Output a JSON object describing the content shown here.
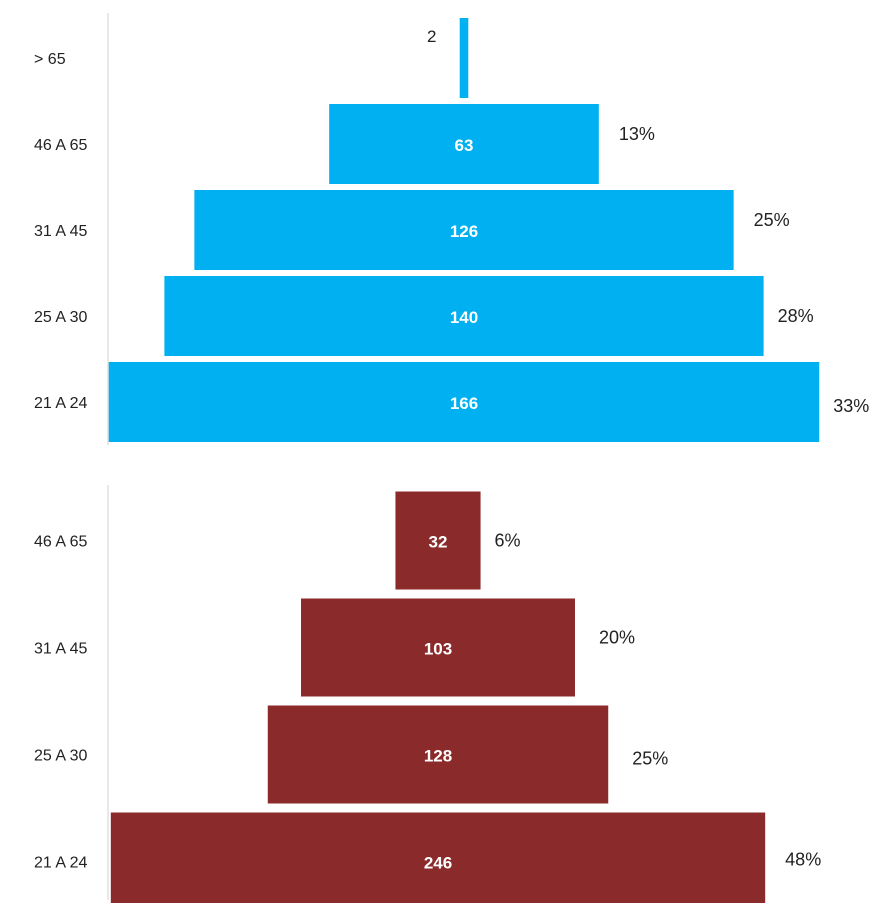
{
  "colors": {
    "background": "#ffffff",
    "axis_line": "#d0d0d0",
    "series_top": "#00b0f0",
    "series_bottom": "#8b2a2a",
    "bar_text": "#ffffff",
    "label_text": "#222222"
  },
  "chart_data": [
    {
      "type": "bar",
      "orientation": "horizontal-funnel",
      "categories": [
        "> 65",
        "46 A 65",
        "31 A 45",
        "25 A 30",
        "21 A 24"
      ],
      "values": [
        2,
        63,
        126,
        140,
        166
      ],
      "value_labels": [
        "2",
        "63",
        "126",
        "140",
        "166"
      ],
      "percent_labels": [
        "",
        "13%",
        "25%",
        "28%",
        "33%"
      ],
      "color": "#00b0f0",
      "grid": false,
      "legend": "none"
    },
    {
      "type": "bar",
      "orientation": "horizontal-funnel",
      "categories": [
        "46 A 65",
        "31 A 45",
        "25 A 30",
        "21 A 24"
      ],
      "values": [
        32,
        103,
        128,
        246
      ],
      "value_labels": [
        "32",
        "103",
        "128",
        "246"
      ],
      "percent_labels": [
        "6%",
        "20%",
        "25%",
        "48%"
      ],
      "color": "#8b2a2a",
      "grid": false,
      "legend": "none"
    }
  ]
}
